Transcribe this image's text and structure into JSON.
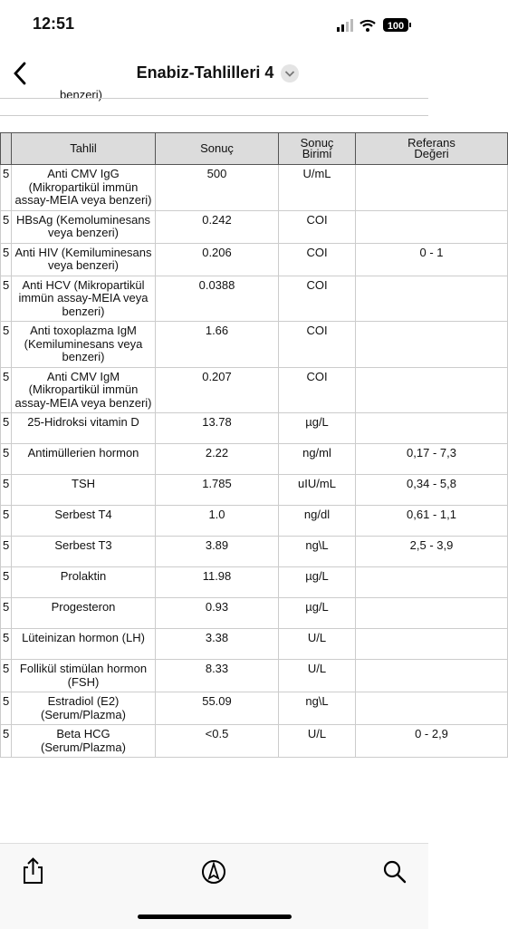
{
  "status_bar": {
    "time": "12:51",
    "battery": "100"
  },
  "nav": {
    "title": "Enabiz-Tahlilleri 4"
  },
  "previous_row_fragment": "benzeri)",
  "table": {
    "headers": [
      "Tahlil",
      "Sonuç",
      "Sonuç Birimi",
      "Referans Değeri"
    ],
    "rows": [
      {
        "date": "5",
        "test": "Anti CMV IgG (Mikropartikül immün assay-MEIA veya benzeri)",
        "result": "500",
        "unit": "U/mL",
        "reference": null
      },
      {
        "date": "5",
        "test": "HBsAg (Kemoluminesans veya benzeri)",
        "result": "0.242",
        "unit": "COI",
        "reference": null
      },
      {
        "date": "5",
        "test": "Anti HIV (Kemiluminesans veya benzeri)",
        "result": "0.206",
        "unit": "COI",
        "reference": "0 - 1"
      },
      {
        "date": "5",
        "test": "Anti HCV (Mikropartikül immün assay-MEIA veya benzeri)",
        "result": "0.0388",
        "unit": "COI",
        "reference": null
      },
      {
        "date": "5",
        "test": "Anti toxoplazma IgM (Kemiluminesans veya benzeri)",
        "result": "1.66",
        "unit": "COI",
        "reference": null
      },
      {
        "date": "5",
        "test": "Anti CMV IgM (Mikropartikül immün assay-MEIA veya benzeri)",
        "result": "0.207",
        "unit": "COI",
        "reference": null
      },
      {
        "date": "5",
        "test": "25-Hidroksi vitamin D",
        "result": "13.78",
        "unit": "µg/L",
        "reference": null
      },
      {
        "date": "5",
        "test": "Antimüllerien hormon",
        "result": "2.22",
        "unit": "ng/ml",
        "reference": "0,17 - 7,3"
      },
      {
        "date": "5",
        "test": "TSH",
        "result": "1.785",
        "unit": "uIU/mL",
        "reference": "0,34 - 5,8"
      },
      {
        "date": "5",
        "test": "Serbest T4",
        "result": "1.0",
        "unit": "ng/dl",
        "reference": "0,61 - 1,1"
      },
      {
        "date": "5",
        "test": "Serbest T3",
        "result": "3.89",
        "unit": "ng\\L",
        "reference": "2,5 - 3,9"
      },
      {
        "date": "5",
        "test": "Prolaktin",
        "result": "11.98",
        "unit": "µg/L",
        "reference": null
      },
      {
        "date": "5",
        "test": "Progesteron",
        "result": "0.93",
        "unit": "µg/L",
        "reference": null
      },
      {
        "date": "5",
        "test": "Lüteinizan hormon (LH)",
        "result": "3.38",
        "unit": "U/L",
        "reference": null
      },
      {
        "date": "5",
        "test": "Follikül stimülan hormon (FSH)",
        "result": "8.33",
        "unit": "U/L",
        "reference": null
      },
      {
        "date": "5",
        "test": "Estradiol (E2) (Serum/Plazma)",
        "result": "55.09",
        "unit": "ng\\L",
        "reference": null
      },
      {
        "date": "5",
        "test": "Beta HCG (Serum/Plazma)",
        "result": "<0.5",
        "unit": "U/L",
        "reference": "0 - 2,9"
      }
    ]
  }
}
